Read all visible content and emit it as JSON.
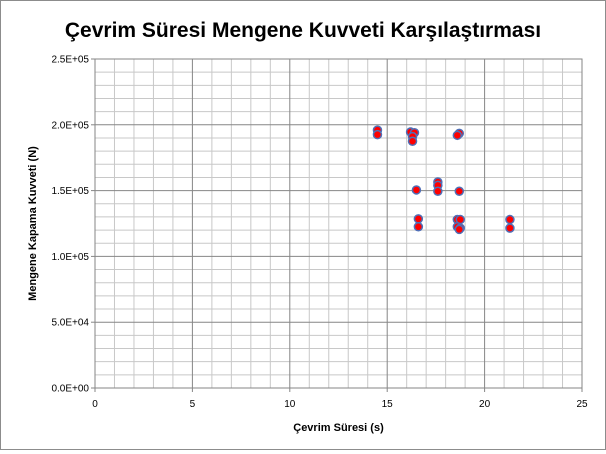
{
  "chart_data": {
    "type": "scatter",
    "title": "Çevrim Süresi Mengene Kuvveti Karşılaştırması",
    "xlabel": "Çevrim Süresi (s)",
    "ylabel": "Mengene Kapama Kuvveti (N)",
    "xlim": [
      0,
      25
    ],
    "ylim": [
      0,
      250000
    ],
    "x_ticks": [
      {
        "value": 0,
        "label": "0"
      },
      {
        "value": 5,
        "label": "5"
      },
      {
        "value": 10,
        "label": "10"
      },
      {
        "value": 15,
        "label": "15"
      },
      {
        "value": 20,
        "label": "20"
      },
      {
        "value": 25,
        "label": "25"
      }
    ],
    "y_ticks": [
      {
        "value": 0,
        "label": "0.0E+00"
      },
      {
        "value": 50000,
        "label": "5.0E+04"
      },
      {
        "value": 100000,
        "label": "1.0E+05"
      },
      {
        "value": 150000,
        "label": "1.5E+05"
      },
      {
        "value": 200000,
        "label": "2.0E+05"
      },
      {
        "value": 250000,
        "label": "2.5E+05"
      }
    ],
    "grid": true,
    "legend": "none",
    "colors": {
      "marker_fill": "#ff0000",
      "marker_stroke": "#4f6fb7",
      "major_grid": "#868686",
      "minor_grid": "#c8c8c8"
    },
    "series": [
      {
        "points": [
          {
            "x": 14.5,
            "y": 196000
          },
          {
            "x": 14.5,
            "y": 192500
          },
          {
            "x": 16.2,
            "y": 194500
          },
          {
            "x": 16.4,
            "y": 194000
          },
          {
            "x": 16.3,
            "y": 191000
          },
          {
            "x": 16.3,
            "y": 187500
          },
          {
            "x": 18.7,
            "y": 193500
          },
          {
            "x": 18.6,
            "y": 192000
          },
          {
            "x": 17.6,
            "y": 156500
          },
          {
            "x": 17.6,
            "y": 154000
          },
          {
            "x": 17.6,
            "y": 149500
          },
          {
            "x": 16.5,
            "y": 150500
          },
          {
            "x": 18.7,
            "y": 149500
          },
          {
            "x": 16.6,
            "y": 128500
          },
          {
            "x": 16.6,
            "y": 122500
          },
          {
            "x": 18.6,
            "y": 128000
          },
          {
            "x": 18.75,
            "y": 128000
          },
          {
            "x": 18.6,
            "y": 122500
          },
          {
            "x": 18.75,
            "y": 121500
          },
          {
            "x": 18.7,
            "y": 120500
          },
          {
            "x": 21.3,
            "y": 128000
          },
          {
            "x": 21.3,
            "y": 121500
          }
        ]
      }
    ]
  }
}
